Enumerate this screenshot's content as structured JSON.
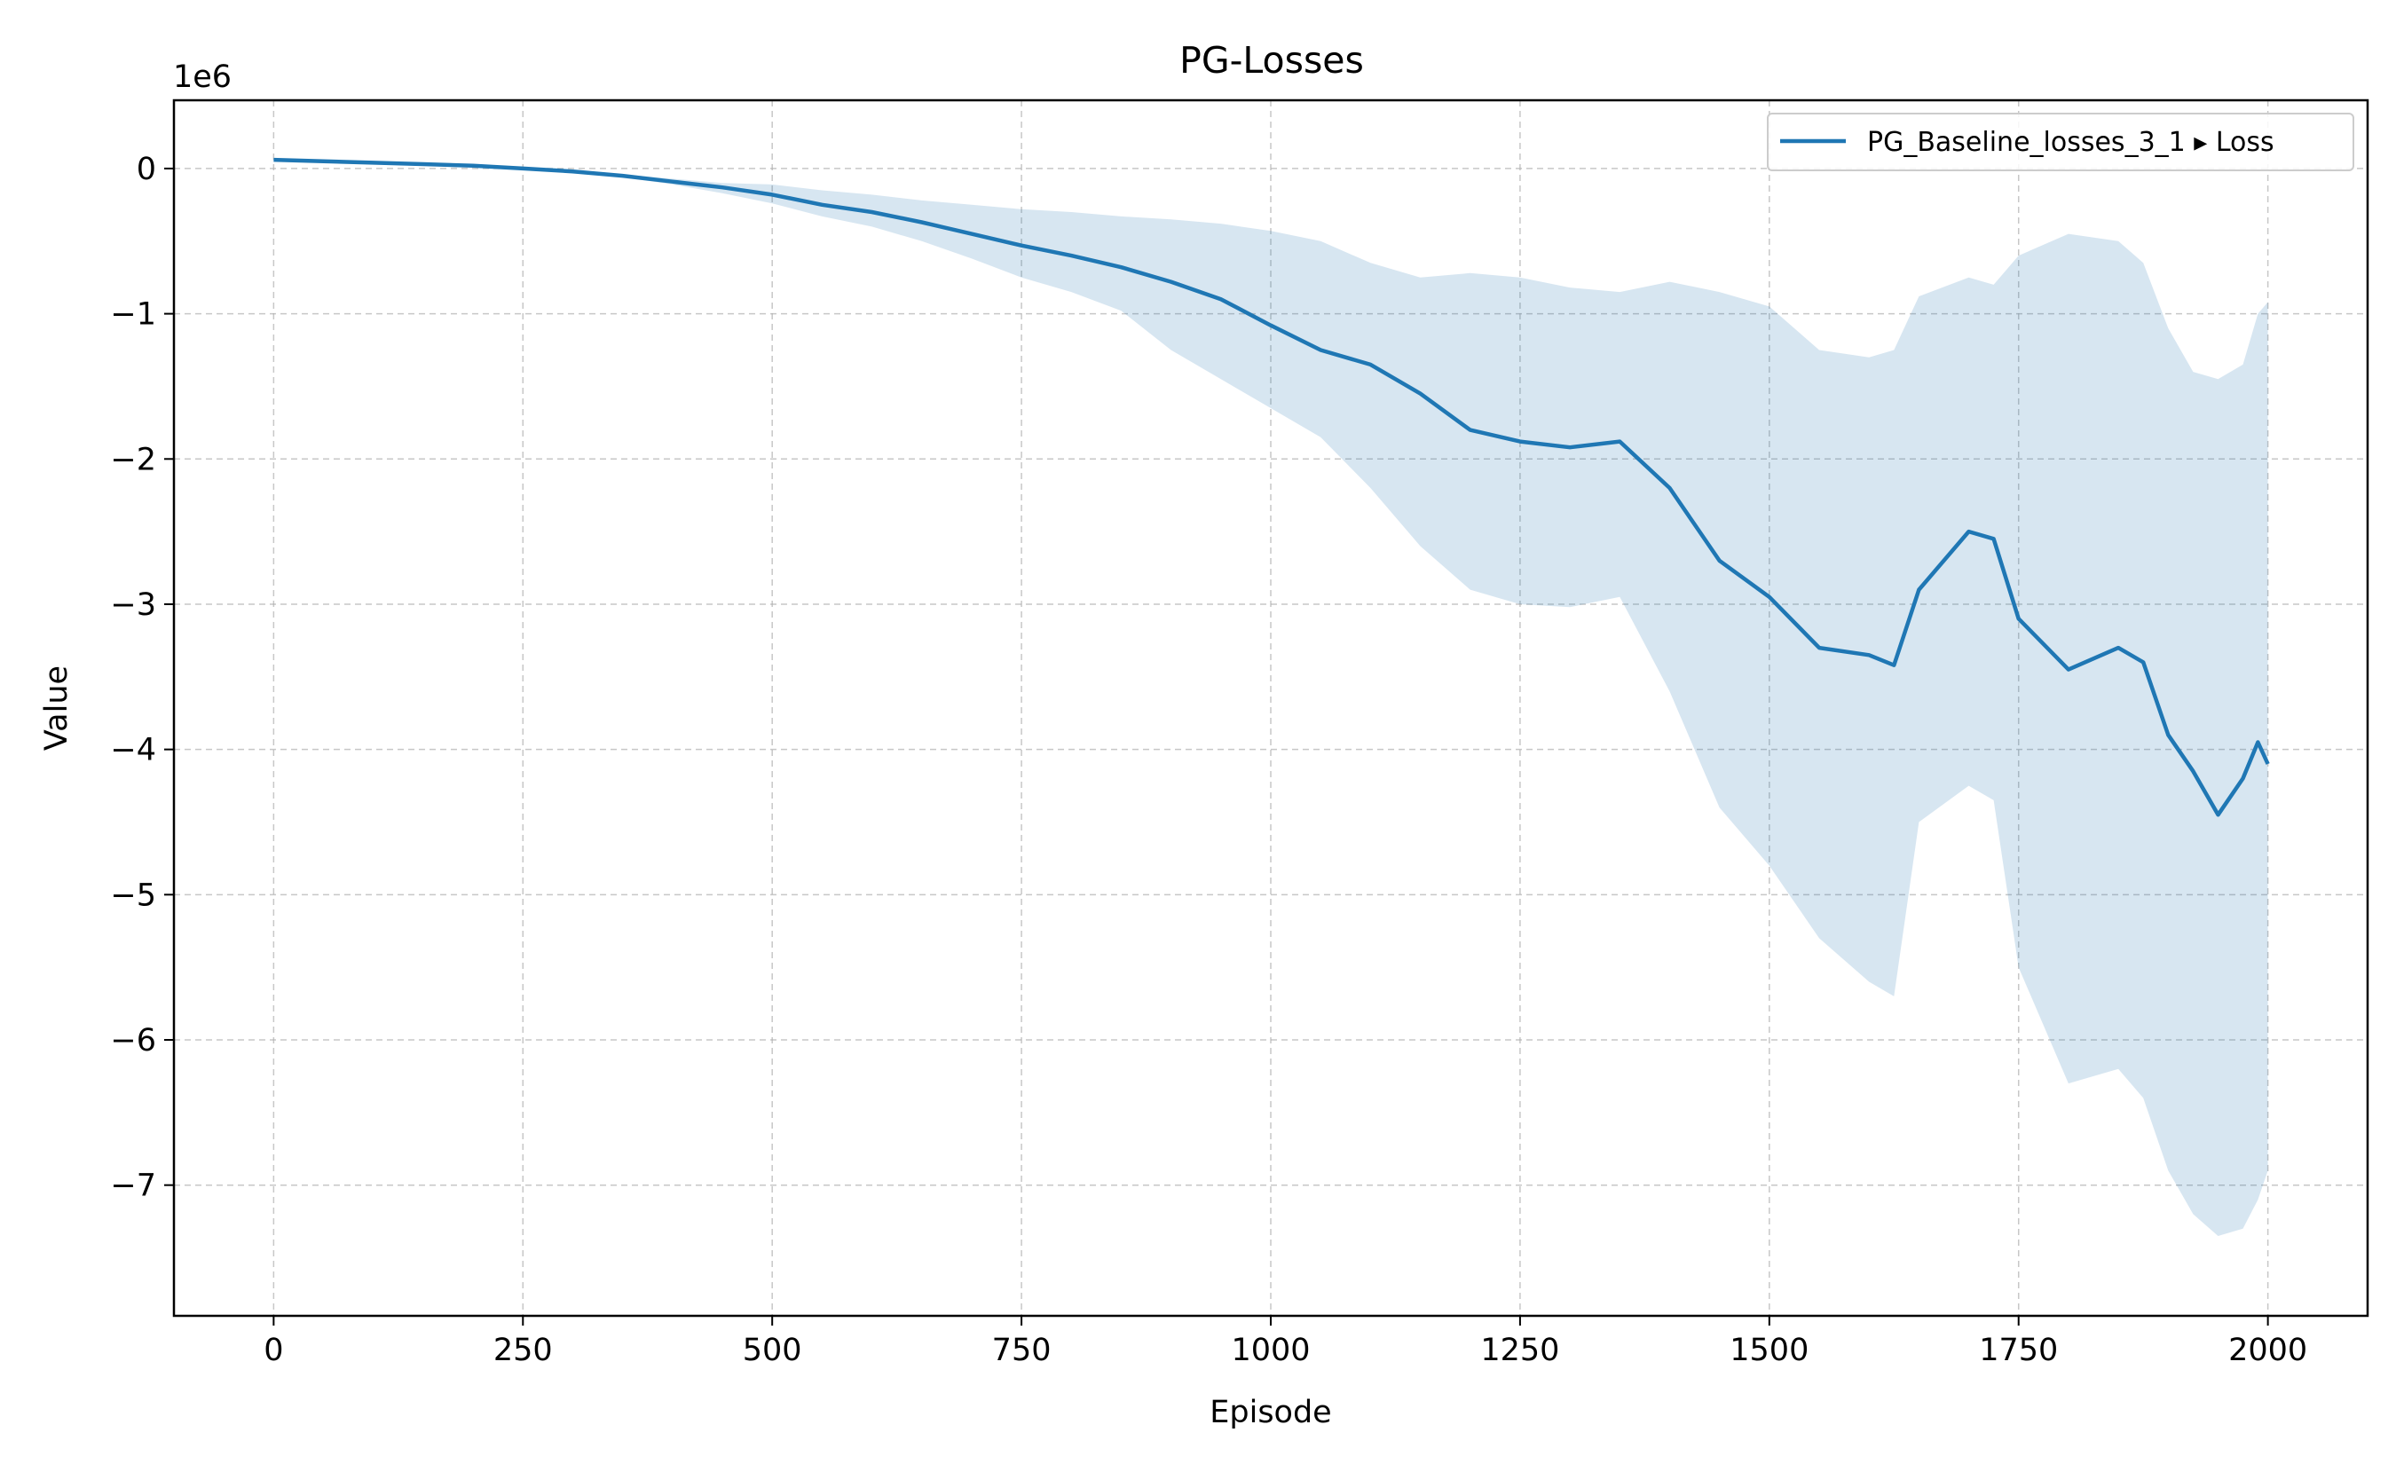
{
  "chart_data": {
    "type": "line",
    "title": "PG-Losses",
    "xlabel": "Episode",
    "ylabel": "Value",
    "y_offset_label": "1e6",
    "xlim": [
      -100,
      2100
    ],
    "ylim": [
      -7.9,
      0.47
    ],
    "x_ticks": [
      0,
      250,
      500,
      750,
      1000,
      1250,
      1500,
      1750,
      2000
    ],
    "x_tick_labels": [
      "0",
      "250",
      "500",
      "750",
      "1000",
      "1250",
      "1500",
      "1750",
      "2000"
    ],
    "y_ticks": [
      0,
      -1,
      -2,
      -3,
      -4,
      -5,
      -6,
      -7
    ],
    "y_tick_labels": [
      "0",
      "−1",
      "−2",
      "−3",
      "−4",
      "−5",
      "−6",
      "−7"
    ],
    "grid": true,
    "legend_position": "top-right",
    "colors": {
      "line": "#1f77b4",
      "band": "#1f77b4"
    },
    "series": [
      {
        "name": "PG_Baseline_losses_3_1 ▸ Loss",
        "x": [
          0,
          50,
          100,
          150,
          200,
          250,
          300,
          350,
          400,
          450,
          500,
          550,
          600,
          650,
          700,
          750,
          800,
          850,
          900,
          950,
          1000,
          1050,
          1100,
          1150,
          1200,
          1250,
          1300,
          1350,
          1400,
          1450,
          1500,
          1550,
          1600,
          1625,
          1650,
          1700,
          1725,
          1750,
          1800,
          1850,
          1875,
          1900,
          1925,
          1950,
          1975,
          1990,
          2000
        ],
        "y": [
          0.06,
          0.05,
          0.04,
          0.03,
          0.02,
          0.0,
          -0.02,
          -0.05,
          -0.09,
          -0.13,
          -0.18,
          -0.25,
          -0.3,
          -0.37,
          -0.45,
          -0.53,
          -0.6,
          -0.68,
          -0.78,
          -0.9,
          -1.08,
          -1.25,
          -1.35,
          -1.55,
          -1.8,
          -1.88,
          -1.92,
          -1.88,
          -2.2,
          -2.7,
          -2.95,
          -3.3,
          -3.35,
          -3.42,
          -2.9,
          -2.5,
          -2.55,
          -3.1,
          -3.45,
          -3.3,
          -3.4,
          -3.9,
          -4.15,
          -4.45,
          -4.2,
          -3.95,
          -4.1
        ],
        "upper": [
          0.06,
          0.05,
          0.04,
          0.03,
          0.02,
          0.0,
          -0.02,
          -0.04,
          -0.07,
          -0.1,
          -0.11,
          -0.15,
          -0.18,
          -0.22,
          -0.25,
          -0.28,
          -0.3,
          -0.33,
          -0.35,
          -0.38,
          -0.43,
          -0.5,
          -0.65,
          -0.75,
          -0.72,
          -0.75,
          -0.82,
          -0.85,
          -0.78,
          -0.85,
          -0.95,
          -1.25,
          -1.3,
          -1.25,
          -0.88,
          -0.75,
          -0.8,
          -0.6,
          -0.45,
          -0.5,
          -0.65,
          -1.1,
          -1.4,
          -1.45,
          -1.35,
          -1.0,
          -0.92
        ],
        "lower": [
          0.06,
          0.05,
          0.04,
          0.03,
          0.02,
          0.0,
          -0.03,
          -0.06,
          -0.11,
          -0.17,
          -0.24,
          -0.33,
          -0.4,
          -0.5,
          -0.62,
          -0.75,
          -0.85,
          -0.98,
          -1.25,
          -1.45,
          -1.65,
          -1.85,
          -2.2,
          -2.6,
          -2.9,
          -3.0,
          -3.02,
          -2.95,
          -3.6,
          -4.4,
          -4.8,
          -5.3,
          -5.6,
          -5.7,
          -4.5,
          -4.25,
          -4.35,
          -5.5,
          -6.3,
          -6.2,
          -6.4,
          -6.9,
          -7.2,
          -7.35,
          -7.3,
          -7.1,
          -6.9
        ]
      }
    ]
  }
}
